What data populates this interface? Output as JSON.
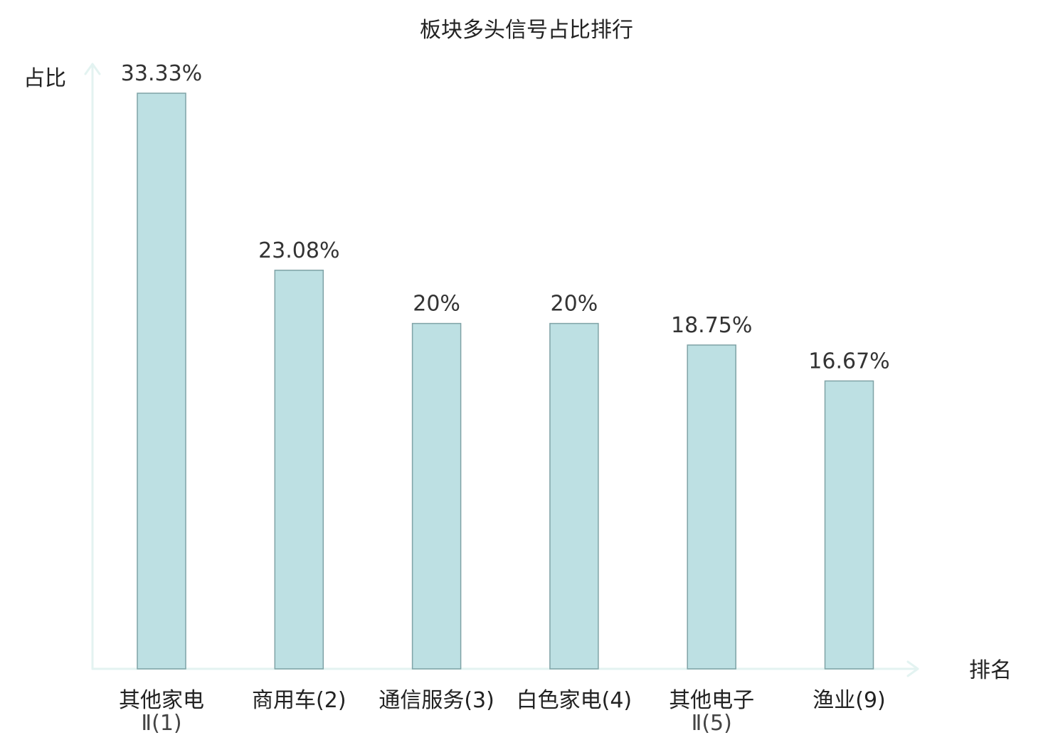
{
  "chart_data": {
    "type": "bar",
    "title": "板块多头信号占比排行",
    "xlabel": "排名",
    "ylabel": "占比",
    "ylim": [
      0,
      33.33
    ],
    "grid": false,
    "categories": [
      "其他家电Ⅱ(1)",
      "商用车(2)",
      "通信服务(3)",
      "白色家电(4)",
      "其他电子Ⅱ(5)",
      "渔业(9)"
    ],
    "category_lines": [
      [
        "其他家电",
        "Ⅱ(1)"
      ],
      [
        "商用车(2)"
      ],
      [
        "通信服务(3)"
      ],
      [
        "白色家电(4)"
      ],
      [
        "其他电子",
        "Ⅱ(5)"
      ],
      [
        "渔业(9)"
      ]
    ],
    "values": [
      33.33,
      23.08,
      20,
      20,
      18.75,
      16.67
    ],
    "value_labels": [
      "33.33%",
      "23.08%",
      "20%",
      "20%",
      "18.75%",
      "16.67%"
    ],
    "highlight_index": 5
  },
  "colors": {
    "bar_fill": "#bde0e3",
    "bar_stroke": "#7fa3a6",
    "axis": "#e3f3f1",
    "highlight_label": "#e02020",
    "text": "#222222"
  }
}
